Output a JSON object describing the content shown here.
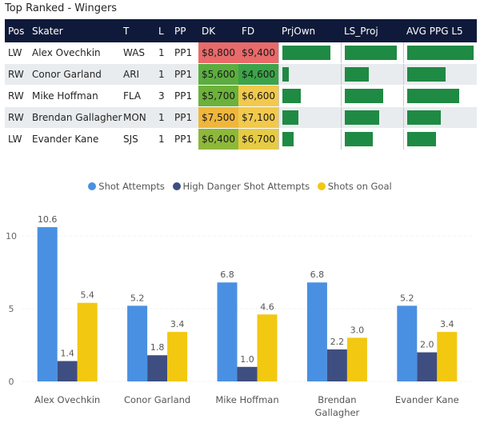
{
  "title": "Top Ranked - Wingers",
  "table": {
    "headers": [
      "Pos",
      "Skater",
      "T",
      "L",
      "PP",
      "DK",
      "FD",
      "PrjOwn",
      "LS_Proj",
      "AVG PPG L5"
    ],
    "rows": [
      {
        "pos": "LW",
        "skater": "Alex Ovechkin",
        "team": "WAS",
        "line": "1",
        "pp": "PP1",
        "dk": "$8,800",
        "fd": "$9,400",
        "dk_color": "#e86a6a",
        "fd_color": "#e86a6a",
        "prjown": 0.83,
        "ls_proj": 0.9,
        "avg_ppg_l5": 0.95
      },
      {
        "pos": "RW",
        "skater": "Conor Garland",
        "team": "ARI",
        "line": "1",
        "pp": "PP1",
        "dk": "$5,600",
        "fd": "$4,600",
        "dk_color": "#5cad3f",
        "fd_color": "#3da34a",
        "prjown": 0.12,
        "ls_proj": 0.42,
        "avg_ppg_l5": 0.55
      },
      {
        "pos": "RW",
        "skater": "Mike Hoffman",
        "team": "FLA",
        "line": "3",
        "pp": "PP1",
        "dk": "$5,700",
        "fd": "$6,600",
        "dk_color": "#6cb23a",
        "fd_color": "#f2c94c",
        "prjown": 0.32,
        "ls_proj": 0.66,
        "avg_ppg_l5": 0.75
      },
      {
        "pos": "RW",
        "skater": "Brendan Gallagher",
        "team": "MON",
        "line": "1",
        "pp": "PP1",
        "dk": "$7,500",
        "fd": "$7,100",
        "dk_color": "#f0b63c",
        "fd_color": "#f2c94c",
        "prjown": 0.28,
        "ls_proj": 0.6,
        "avg_ppg_l5": 0.48
      },
      {
        "pos": "LW",
        "skater": "Evander Kane",
        "team": "SJS",
        "line": "1",
        "pp": "PP1",
        "dk": "$6,400",
        "fd": "$6,700",
        "dk_color": "#8eb83a",
        "fd_color": "#e6cb45",
        "prjown": 0.2,
        "ls_proj": 0.48,
        "avg_ppg_l5": 0.42
      }
    ]
  },
  "chart_data": {
    "type": "bar",
    "categories": [
      "Alex Ovechkin",
      "Conor Garland",
      "Mike Hoffman",
      "Brendan Gallagher",
      "Evander Kane"
    ],
    "series": [
      {
        "name": "Shot Attempts",
        "color": "#4a90e2",
        "values": [
          10.6,
          5.2,
          6.8,
          6.8,
          5.2
        ],
        "labels": [
          "10.6",
          "5.2",
          "6.8",
          "6.8",
          "5.2"
        ]
      },
      {
        "name": "High Danger Shot Attempts",
        "color": "#3f4e80",
        "values": [
          1.4,
          1.8,
          1.0,
          2.2,
          2.0
        ],
        "labels": [
          "1.4",
          "1.8",
          "1.0",
          "2.2",
          "2.0"
        ]
      },
      {
        "name": "Shots on Goal",
        "color": "#f2c811",
        "values": [
          5.4,
          3.4,
          4.6,
          3.0,
          3.4
        ],
        "labels": [
          "5.4",
          "3.4",
          "4.6",
          "3.0",
          "3.4"
        ]
      }
    ],
    "yticks": [
      "0",
      "5",
      "10"
    ],
    "ylim": [
      0,
      12
    ],
    "legend": "top-center"
  }
}
